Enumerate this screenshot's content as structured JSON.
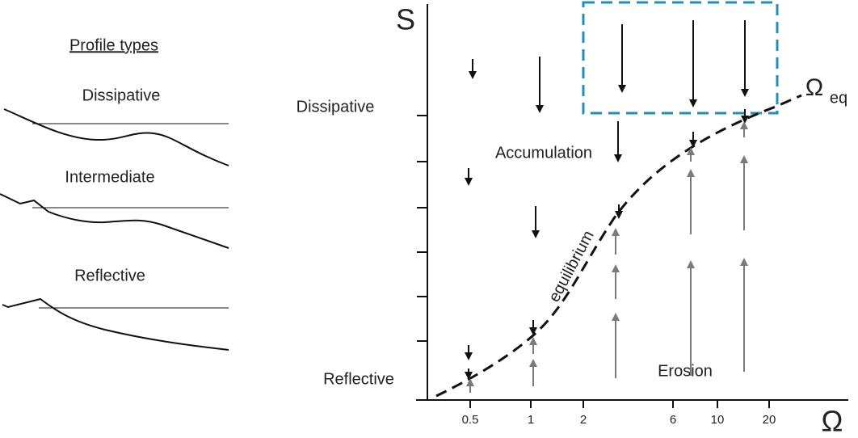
{
  "left_panel": {
    "title": "Profile types",
    "profiles": [
      "Dissipative",
      "Intermediate",
      "Reflective"
    ]
  },
  "diagram": {
    "y_axis_label": "S",
    "x_axis_label": "Ω",
    "curve_label": "Ω",
    "curve_label_subscript": "eq",
    "y_labels": [
      "Dissipative",
      "Reflective"
    ],
    "regions": [
      "Accumulation",
      "Erosion"
    ],
    "curve_text": "equilibrium",
    "x_ticks": [
      "0.5",
      "1",
      "2",
      "6",
      "10",
      "20"
    ]
  }
}
